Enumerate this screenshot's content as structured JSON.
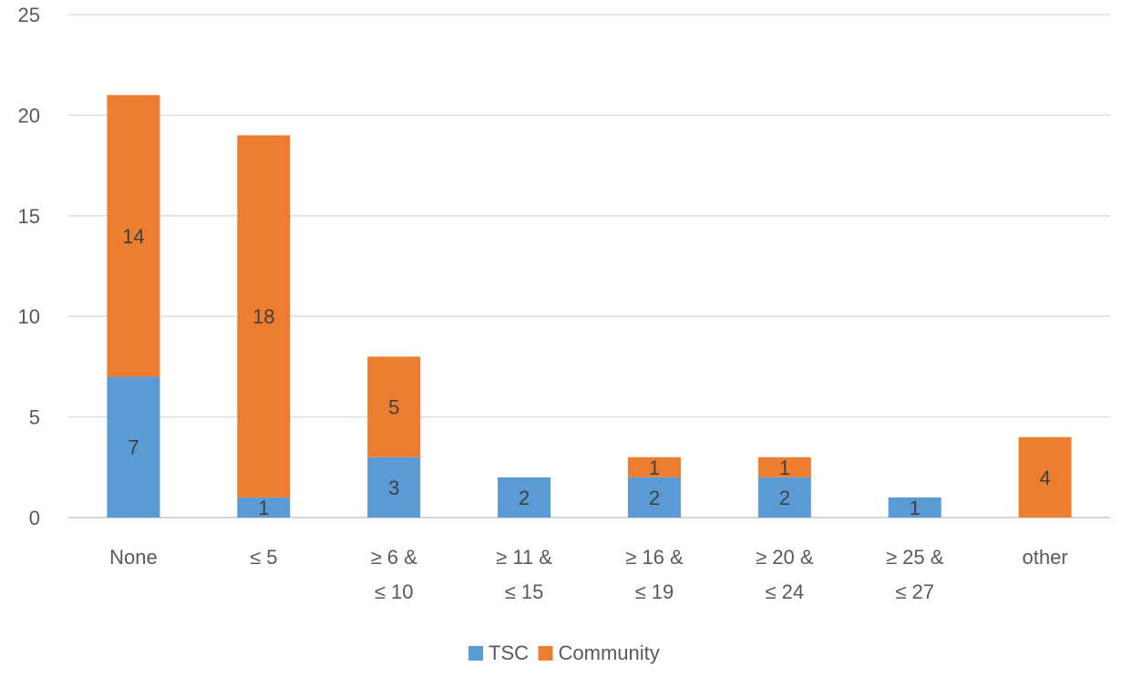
{
  "chart_data": {
    "type": "bar",
    "stacked": true,
    "title": "",
    "xlabel": "",
    "ylabel": "",
    "ylim": [
      0,
      25
    ],
    "yticks": [
      0,
      5,
      10,
      15,
      20,
      25
    ],
    "grid": true,
    "legend_position": "bottom",
    "categories": [
      [
        "None"
      ],
      [
        "≤ 5"
      ],
      [
        "≥ 6 &",
        "≤ 10"
      ],
      [
        "≥ 11 &",
        "≤ 15"
      ],
      [
        "≥ 16 &",
        "≤ 19"
      ],
      [
        "≥ 20 &",
        "≤ 24"
      ],
      [
        "≥ 25 &",
        "≤ 27"
      ],
      [
        "other"
      ]
    ],
    "series": [
      {
        "name": "TSC",
        "color": "#5B9BD5",
        "values": [
          7,
          1,
          3,
          2,
          2,
          2,
          1,
          0
        ],
        "labels": [
          "7",
          "1",
          "3",
          "2",
          "2",
          "2",
          "1",
          ""
        ]
      },
      {
        "name": "Community",
        "color": "#ED7D31",
        "values": [
          14,
          18,
          5,
          0,
          1,
          1,
          0,
          4
        ],
        "labels": [
          "14",
          "18",
          "5",
          "",
          "1",
          "1",
          "",
          "4"
        ]
      }
    ]
  }
}
